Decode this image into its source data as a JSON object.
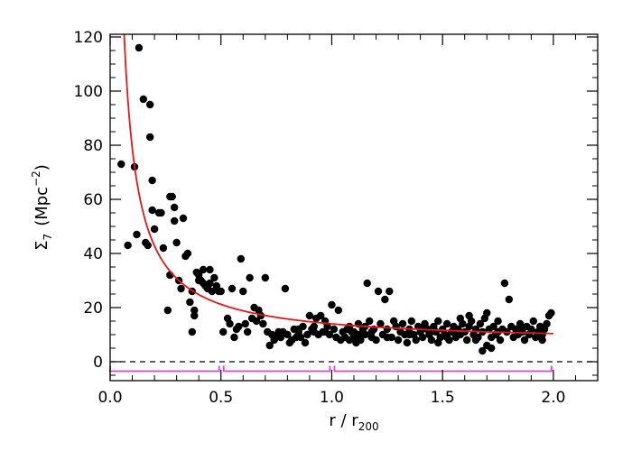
{
  "chart_data": {
    "type": "scatter",
    "title": "",
    "xlabel": {
      "main": "r / r",
      "sub": "200"
    },
    "ylabel": {
      "sym": "Σ",
      "sub": "7",
      "unit_pre": "(Mpc",
      "unit_sup": "−2",
      "unit_post": ")"
    },
    "xlim": [
      0.0,
      2.2
    ],
    "ylim": [
      -7,
      121
    ],
    "x_ticks": [
      0.0,
      0.5,
      1.0,
      1.5,
      2.0
    ],
    "x_tick_labels": [
      "0.0",
      "0.5",
      "1.0",
      "1.5",
      "2.0"
    ],
    "y_ticks": [
      0,
      20,
      40,
      60,
      80,
      100,
      120
    ],
    "y_tick_labels": [
      "0",
      "20",
      "40",
      "60",
      "80",
      "100",
      "120"
    ],
    "grid": false,
    "colors": {
      "points": "#000000",
      "fit_curve": "#e8161c",
      "bins": "#e040e0",
      "zero_line": "#000000"
    },
    "zero_line": {
      "y": 0,
      "style": "dashed"
    },
    "bins": [
      [
        0.0,
        0.5
      ],
      [
        0.5,
        1.0
      ],
      [
        1.0,
        2.0
      ]
    ],
    "bin_marker_y": -3.5,
    "fit_curve": {
      "form": "a + b / r",
      "a": 6.8,
      "b": 7.2,
      "x_start": 0.02,
      "x_end": 2.0
    },
    "points": [
      [
        0.05,
        73
      ],
      [
        0.08,
        43
      ],
      [
        0.11,
        72
      ],
      [
        0.12,
        47
      ],
      [
        0.13,
        116
      ],
      [
        0.15,
        97
      ],
      [
        0.16,
        44
      ],
      [
        0.17,
        43
      ],
      [
        0.18,
        95
      ],
      [
        0.18,
        83
      ],
      [
        0.19,
        67
      ],
      [
        0.19,
        56
      ],
      [
        0.2,
        49
      ],
      [
        0.22,
        55
      ],
      [
        0.23,
        55
      ],
      [
        0.24,
        42
      ],
      [
        0.26,
        19
      ],
      [
        0.27,
        61
      ],
      [
        0.27,
        32
      ],
      [
        0.28,
        61
      ],
      [
        0.29,
        57
      ],
      [
        0.29,
        52
      ],
      [
        0.3,
        44
      ],
      [
        0.31,
        30
      ],
      [
        0.32,
        27
      ],
      [
        0.33,
        53
      ],
      [
        0.34,
        39
      ],
      [
        0.35,
        40
      ],
      [
        0.36,
        22
      ],
      [
        0.37,
        26
      ],
      [
        0.37,
        11
      ],
      [
        0.38,
        19
      ],
      [
        0.38,
        17
      ],
      [
        0.39,
        33
      ],
      [
        0.4,
        32
      ],
      [
        0.4,
        30
      ],
      [
        0.41,
        30
      ],
      [
        0.42,
        34
      ],
      [
        0.42,
        29
      ],
      [
        0.43,
        28
      ],
      [
        0.44,
        27
      ],
      [
        0.45,
        34
      ],
      [
        0.45,
        29
      ],
      [
        0.46,
        26
      ],
      [
        0.47,
        31
      ],
      [
        0.48,
        28
      ],
      [
        0.49,
        26
      ],
      [
        0.5,
        26
      ],
      [
        0.51,
        11
      ],
      [
        0.53,
        16
      ],
      [
        0.54,
        14
      ],
      [
        0.55,
        27
      ],
      [
        0.56,
        9
      ],
      [
        0.57,
        12
      ],
      [
        0.58,
        13
      ],
      [
        0.59,
        38
      ],
      [
        0.6,
        26
      ],
      [
        0.61,
        14
      ],
      [
        0.62,
        11
      ],
      [
        0.63,
        31
      ],
      [
        0.64,
        16
      ],
      [
        0.65,
        20
      ],
      [
        0.66,
        15
      ],
      [
        0.67,
        19
      ],
      [
        0.68,
        17
      ],
      [
        0.69,
        14
      ],
      [
        0.7,
        31
      ],
      [
        0.71,
        11
      ],
      [
        0.72,
        6
      ],
      [
        0.73,
        10
      ],
      [
        0.74,
        8
      ],
      [
        0.75,
        9
      ],
      [
        0.76,
        11
      ],
      [
        0.77,
        9
      ],
      [
        0.78,
        11
      ],
      [
        0.79,
        27
      ],
      [
        0.8,
        10
      ],
      [
        0.81,
        7
      ],
      [
        0.82,
        8
      ],
      [
        0.83,
        12
      ],
      [
        0.84,
        9
      ],
      [
        0.85,
        11
      ],
      [
        0.86,
        9
      ],
      [
        0.87,
        13
      ],
      [
        0.88,
        7
      ],
      [
        0.89,
        10
      ],
      [
        0.9,
        17
      ],
      [
        0.91,
        12
      ],
      [
        0.92,
        11
      ],
      [
        0.93,
        16
      ],
      [
        0.94,
        10
      ],
      [
        0.95,
        17
      ],
      [
        0.96,
        11
      ],
      [
        0.97,
        11
      ],
      [
        0.98,
        13
      ],
      [
        0.99,
        10
      ],
      [
        1.0,
        21
      ],
      [
        1.01,
        12
      ],
      [
        1.02,
        9
      ],
      [
        1.03,
        19
      ],
      [
        1.04,
        8
      ],
      [
        1.05,
        11
      ],
      [
        1.06,
        9
      ],
      [
        1.07,
        12
      ],
      [
        1.08,
        8
      ],
      [
        1.09,
        11
      ],
      [
        1.1,
        9
      ],
      [
        1.11,
        7
      ],
      [
        1.12,
        10
      ],
      [
        1.13,
        8
      ],
      [
        1.14,
        12
      ],
      [
        1.15,
        10
      ],
      [
        1.16,
        29
      ],
      [
        1.17,
        15
      ],
      [
        1.18,
        9
      ],
      [
        1.19,
        12
      ],
      [
        1.2,
        8
      ],
      [
        1.21,
        26
      ],
      [
        1.22,
        14
      ],
      [
        1.23,
        10
      ],
      [
        1.24,
        23
      ],
      [
        1.25,
        12
      ],
      [
        1.26,
        26
      ],
      [
        1.27,
        9
      ],
      [
        1.28,
        15
      ],
      [
        1.29,
        13
      ],
      [
        1.3,
        8
      ],
      [
        1.31,
        11
      ],
      [
        1.32,
        14
      ],
      [
        1.33,
        10
      ],
      [
        1.34,
        7
      ],
      [
        1.35,
        12
      ],
      [
        1.36,
        15
      ],
      [
        1.37,
        10
      ],
      [
        1.38,
        8
      ],
      [
        1.39,
        13
      ],
      [
        1.4,
        11
      ],
      [
        1.41,
        9
      ],
      [
        1.42,
        14
      ],
      [
        1.43,
        12
      ],
      [
        1.44,
        10
      ],
      [
        1.45,
        8
      ],
      [
        1.46,
        13
      ],
      [
        1.47,
        11
      ],
      [
        1.48,
        15
      ],
      [
        1.49,
        9
      ],
      [
        1.5,
        12
      ],
      [
        1.51,
        10
      ],
      [
        1.52,
        14
      ],
      [
        1.53,
        8
      ],
      [
        1.54,
        11
      ],
      [
        1.55,
        13
      ],
      [
        1.56,
        9
      ],
      [
        1.57,
        12
      ],
      [
        1.58,
        10
      ],
      [
        1.59,
        14
      ],
      [
        1.6,
        11
      ],
      [
        1.61,
        8
      ],
      [
        1.62,
        13
      ],
      [
        1.63,
        15
      ],
      [
        1.64,
        10
      ],
      [
        1.65,
        12
      ],
      [
        1.66,
        9
      ],
      [
        1.67,
        14
      ],
      [
        1.68,
        11
      ],
      [
        1.69,
        16
      ],
      [
        1.7,
        6
      ],
      [
        1.71,
        12
      ],
      [
        1.72,
        9
      ],
      [
        1.73,
        13
      ],
      [
        1.74,
        10
      ],
      [
        1.75,
        15
      ],
      [
        1.76,
        8
      ],
      [
        1.77,
        12
      ],
      [
        1.78,
        29
      ],
      [
        1.79,
        11
      ],
      [
        1.8,
        23
      ],
      [
        1.81,
        13
      ],
      [
        1.82,
        9
      ],
      [
        1.83,
        12
      ],
      [
        1.84,
        10
      ],
      [
        1.85,
        14
      ],
      [
        1.86,
        11
      ],
      [
        1.87,
        8
      ],
      [
        1.88,
        13
      ],
      [
        1.89,
        10
      ],
      [
        1.9,
        12
      ],
      [
        1.91,
        15
      ],
      [
        1.92,
        9
      ],
      [
        1.93,
        11
      ],
      [
        1.94,
        13
      ],
      [
        1.95,
        10
      ],
      [
        1.96,
        12
      ],
      [
        1.97,
        14
      ],
      [
        1.98,
        17
      ],
      [
        1.99,
        18
      ],
      [
        1.1,
        11
      ],
      [
        1.15,
        13
      ],
      [
        1.25,
        9
      ],
      [
        1.35,
        10
      ],
      [
        1.45,
        12
      ],
      [
        1.55,
        11
      ],
      [
        1.65,
        8
      ],
      [
        1.75,
        11
      ],
      [
        1.85,
        12
      ],
      [
        1.95,
        8
      ],
      [
        1.68,
        4
      ],
      [
        1.72,
        5
      ],
      [
        1.7,
        18
      ],
      [
        1.62,
        17
      ],
      [
        1.58,
        16
      ],
      [
        1.52,
        9
      ],
      [
        1.48,
        7
      ],
      [
        1.42,
        13
      ],
      [
        0.85,
        12
      ],
      [
        0.92,
        13
      ],
      [
        0.97,
        15
      ],
      [
        1.08,
        13
      ],
      [
        1.12,
        14
      ],
      [
        1.18,
        11
      ]
    ]
  }
}
